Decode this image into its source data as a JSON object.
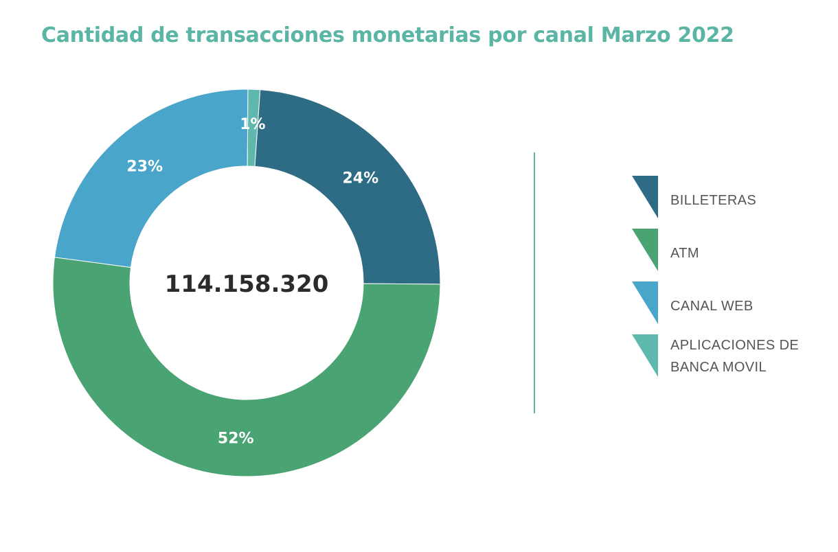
{
  "chart_data": {
    "type": "pie",
    "title": "Cantidad de transacciones monetarias por canal Marzo 2022",
    "center_total": "114.158.320",
    "slices": [
      {
        "name": "BILLETERAS",
        "value": 24,
        "label": "24%",
        "color": "#2e6b85"
      },
      {
        "name": "ATM",
        "value": 52,
        "label": "52%",
        "color": "#4aa372"
      },
      {
        "name": "CANAL WEB",
        "value": 23,
        "label": "23%",
        "color": "#4aa5cb"
      },
      {
        "name": "APLICACIONES DE BANCA MOVIL",
        "value": 1,
        "label": "1%",
        "color": "#5fb8ae"
      }
    ],
    "legend_position": "right"
  }
}
